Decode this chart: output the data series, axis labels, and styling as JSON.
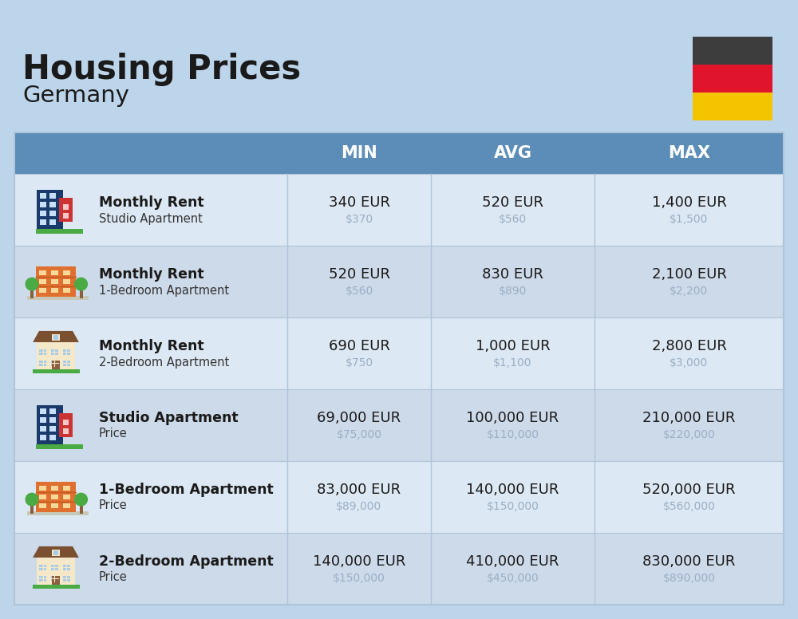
{
  "title": "Housing Prices",
  "subtitle": "Germany",
  "bg_color": "#bdd5ea",
  "header_bg": "#5b8db8",
  "header_text_color": "#ffffff",
  "row_bg_odd": "#dce8f3",
  "row_bg_even": "#cddaea",
  "col_headers": [
    "MIN",
    "AVG",
    "MAX"
  ],
  "rows": [
    {
      "bold_label": "Monthly Rent",
      "sub_label": "Studio Apartment",
      "min_eur": "340 EUR",
      "min_usd": "$370",
      "avg_eur": "520 EUR",
      "avg_usd": "$560",
      "max_eur": "1,400 EUR",
      "max_usd": "$1,500",
      "icon_type": "blue_tall"
    },
    {
      "bold_label": "Monthly Rent",
      "sub_label": "1-Bedroom Apartment",
      "min_eur": "520 EUR",
      "min_usd": "$560",
      "avg_eur": "830 EUR",
      "avg_usd": "$890",
      "max_eur": "2,100 EUR",
      "max_usd": "$2,200",
      "icon_type": "orange_wide"
    },
    {
      "bold_label": "Monthly Rent",
      "sub_label": "2-Bedroom Apartment",
      "min_eur": "690 EUR",
      "min_usd": "$750",
      "avg_eur": "1,000 EUR",
      "avg_usd": "$1,100",
      "max_eur": "2,800 EUR",
      "max_usd": "$3,000",
      "icon_type": "beige_house"
    },
    {
      "bold_label": "Studio Apartment",
      "sub_label": "Price",
      "min_eur": "69,000 EUR",
      "min_usd": "$75,000",
      "avg_eur": "100,000 EUR",
      "avg_usd": "$110,000",
      "max_eur": "210,000 EUR",
      "max_usd": "$220,000",
      "icon_type": "blue_tall"
    },
    {
      "bold_label": "1-Bedroom Apartment",
      "sub_label": "Price",
      "min_eur": "83,000 EUR",
      "min_usd": "$89,000",
      "avg_eur": "140,000 EUR",
      "avg_usd": "$150,000",
      "max_eur": "520,000 EUR",
      "max_usd": "$560,000",
      "icon_type": "orange_wide"
    },
    {
      "bold_label": "2-Bedroom Apartment",
      "sub_label": "Price",
      "min_eur": "140,000 EUR",
      "min_usd": "$150,000",
      "avg_eur": "410,000 EUR",
      "avg_usd": "$450,000",
      "max_eur": "830,000 EUR",
      "max_usd": "$890,000",
      "icon_type": "beige_house"
    }
  ],
  "flag_colors": [
    "#3d3d3d",
    "#e0152b",
    "#f5c400"
  ],
  "usd_color": "#9aafc5",
  "divider_color": "#b0c4d8",
  "text_color": "#1a1a1a"
}
